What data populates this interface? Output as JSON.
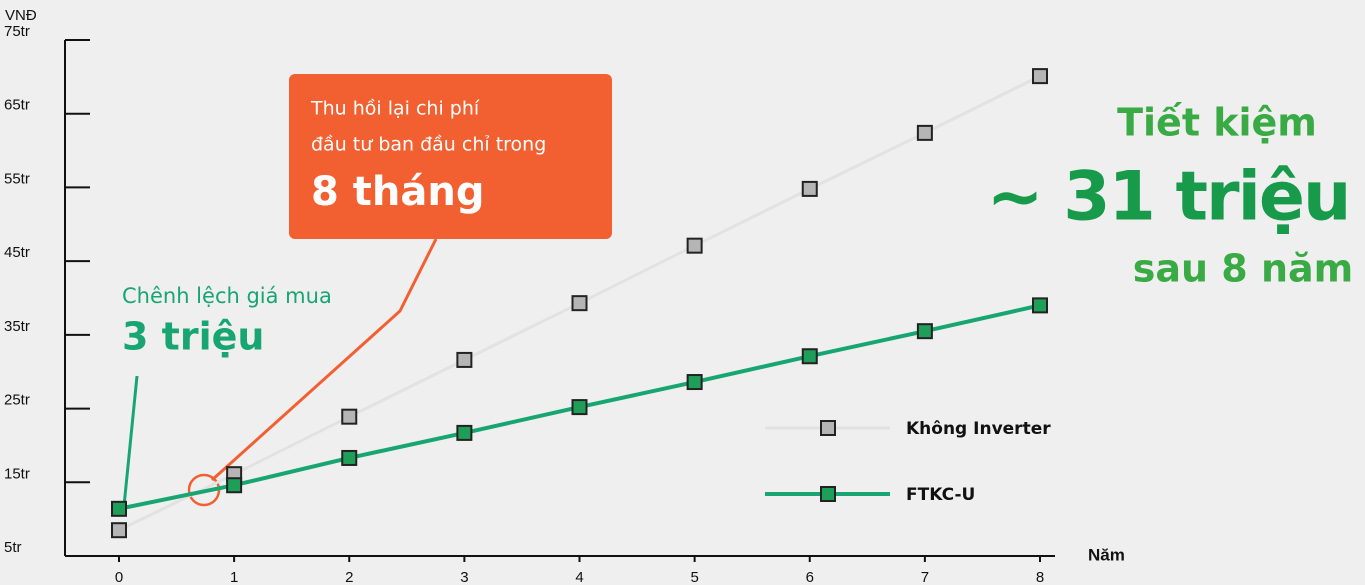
{
  "chart_data": {
    "type": "line",
    "y_label": "VNĐ",
    "x_label": "Năm",
    "x": [
      0,
      1,
      2,
      3,
      4,
      5,
      6,
      7,
      8
    ],
    "xticks": [
      0,
      1,
      2,
      3,
      4,
      5,
      6,
      7,
      8
    ],
    "ylim": [
      5,
      75
    ],
    "yticks": [
      {
        "value": 5,
        "label": "5tr"
      },
      {
        "value": 15,
        "label": "15tr"
      },
      {
        "value": 25,
        "label": "25tr"
      },
      {
        "value": 35,
        "label": "35tr"
      },
      {
        "value": 45,
        "label": "45tr"
      },
      {
        "value": 55,
        "label": "55tr"
      },
      {
        "value": 65,
        "label": "65tr"
      },
      {
        "value": 75,
        "label": "75tr"
      }
    ],
    "series": [
      {
        "name": "Không Inverter",
        "color": "#b5b5b5",
        "line_color": "#e2e2e2",
        "values": [
          8.5,
          16.1,
          23.9,
          31.6,
          39.3,
          47.1,
          54.8,
          62.4,
          70.1
        ]
      },
      {
        "name": "FTKC-U",
        "color": "#1f9e5a",
        "line_color": "#17a673",
        "values": [
          11.4,
          14.6,
          18.3,
          21.7,
          25.2,
          28.6,
          32.1,
          35.5,
          39.0
        ]
      }
    ],
    "callout": {
      "lines": [
        "Thu hồi lại chi phí",
        "đầu tư ban đầu chỉ trong"
      ],
      "highlight": "8 tháng"
    },
    "difference_note": {
      "text": "Chênh lệch giá mua",
      "highlight": "3 triệu"
    },
    "savings_note": {
      "top": "Tiết kiệm",
      "highlight": "~ 31 triệu",
      "bottom": "sau 8 năm"
    }
  }
}
